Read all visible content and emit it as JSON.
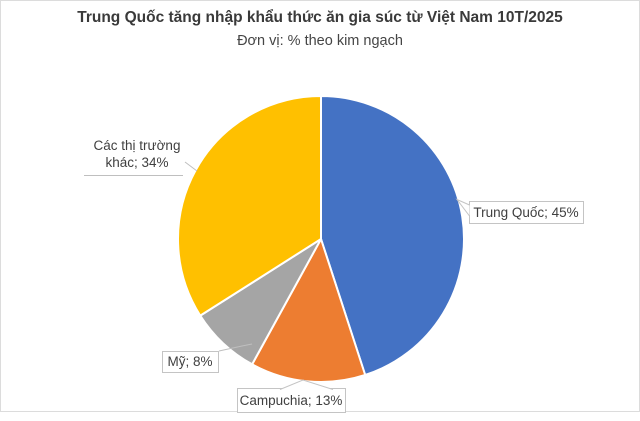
{
  "chart_data": {
    "type": "pie",
    "title": "Trung Quốc tăng nhập khẩu thức ăn gia súc từ Việt Nam 10T/2025",
    "subtitle": "Đơn vị: % theo kim ngạch",
    "legend_position": "none",
    "orientation": "clockwise-from-top",
    "series": [
      {
        "label": "Trung Quốc",
        "value": 45,
        "color": "#4472C4"
      },
      {
        "label": "Campuchia",
        "value": 13,
        "color": "#ED7D31"
      },
      {
        "label": "Mỹ",
        "value": 8,
        "color": "#A5A5A5"
      },
      {
        "label": "Các thị trường khác",
        "value": 34,
        "color": "#FFC000"
      }
    ],
    "data_labels": {
      "trung_quoc": "Trung Quốc; 45%",
      "campuchia": "Campuchia; 13%",
      "my": "Mỹ; 8%",
      "khac": "Các thị trường khác; 34%"
    },
    "colors": {
      "leader_line": "#BFBFBF",
      "label_text": "#404040",
      "slice_gap": "#FFFFFF"
    }
  }
}
